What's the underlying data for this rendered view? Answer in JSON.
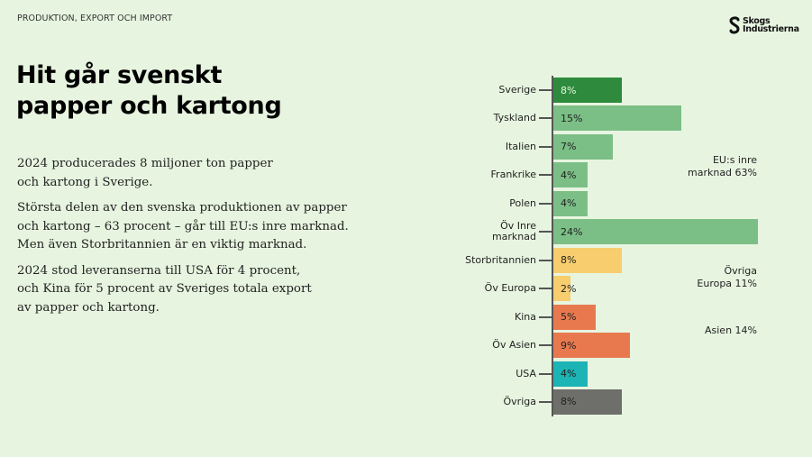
{
  "header": {
    "eyebrow": "PRODUKTION, EXPORT OCH IMPORT",
    "logo_line1": "Skogs",
    "logo_line2": "Industrierna"
  },
  "title": {
    "line1": "Hit går svenskt",
    "line2": "papper och kartong"
  },
  "body": {
    "p1_l1": "2024 producerades 8 miljoner ton papper",
    "p1_l2": "och kartong i Sverige.",
    "p2_l1": "Största delen av den svenska produktionen av papper",
    "p2_l2": "och kartong – 63 procent – går till EU:s inre marknad.",
    "p2_l3": "Men även Storbritannien är en viktig marknad.",
    "p3_l1": "2024 stod leveranserna till USA för 4 procent,",
    "p3_l2": "och Kina för 5 procent av Sveriges totala export",
    "p3_l3": "av papper och kartong."
  },
  "chart_data": {
    "type": "bar",
    "orientation": "horizontal",
    "title": "",
    "xlabel": "",
    "ylabel": "",
    "grid": false,
    "categories": [
      "Sverige",
      "Tyskland",
      "Italien",
      "Frankrike",
      "Polen",
      "Öv Inre marknad",
      "Storbritannien",
      "Öv Europa",
      "Kina",
      "Öv Asien",
      "USA",
      "Övriga"
    ],
    "values": [
      8,
      15,
      7,
      4,
      4,
      24,
      8,
      2,
      5,
      9,
      4,
      8
    ],
    "labels": [
      "8%",
      "15%",
      "7%",
      "4%",
      "4%",
      "24%",
      "8%",
      "2%",
      "5%",
      "9%",
      "4%",
      "8%"
    ],
    "colors": [
      "#2e8b3e",
      "#7bbf86",
      "#7bbf86",
      "#7bbf86",
      "#7bbf86",
      "#7bbf86",
      "#f7cd6e",
      "#f7cd6e",
      "#e8794f",
      "#e8794f",
      "#1cb4b4",
      "#6e6e6a"
    ],
    "groups": [
      {
        "label_l1": "EU:s inre",
        "label_l2": "marknad 63%",
        "members": [
          "Sverige",
          "Tyskland",
          "Italien",
          "Frankrike",
          "Polen",
          "Öv Inre marknad"
        ],
        "total": 63
      },
      {
        "label_l1": "Övriga",
        "label_l2": "Europa 11%",
        "members": [
          "Storbritannien",
          "Öv Europa"
        ],
        "total": 11
      },
      {
        "label_l1": "Asien 14%",
        "label_l2": "",
        "members": [
          "Kina",
          "Öv Asien"
        ],
        "total": 14
      }
    ],
    "unit": "%"
  }
}
